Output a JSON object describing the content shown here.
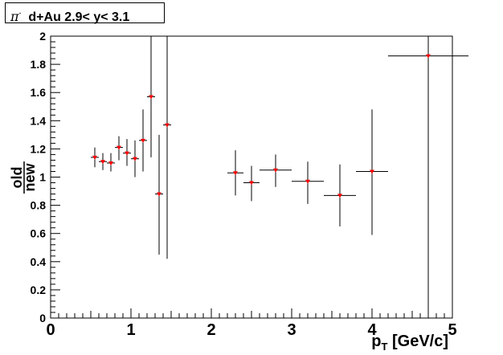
{
  "chart_data": {
    "type": "scatter",
    "title_parts": {
      "particle": "π",
      "charge": "-",
      "rest": "  d+Au 2.9< y< 3.1"
    },
    "xlabel": {
      "main": "p",
      "sub": "T",
      "unit": " [GeV/c]"
    },
    "ylabel": {
      "numerator": "old",
      "denominator": "new"
    },
    "xlim": [
      0,
      5
    ],
    "ylim": [
      0,
      2
    ],
    "x_ticks": [
      "0",
      "1",
      "2",
      "3",
      "4",
      "5"
    ],
    "y_ticks": [
      "0",
      "0.2",
      "0.4",
      "0.6",
      "0.8",
      "1",
      "1.2",
      "1.4",
      "1.6",
      "1.8",
      "2"
    ],
    "grid": false,
    "marker_color": "#ff0000",
    "points": [
      {
        "x": 0.55,
        "y": 1.14,
        "xerr": 0.05,
        "ylo": 1.07,
        "yhi": 1.21
      },
      {
        "x": 0.65,
        "y": 1.11,
        "xerr": 0.05,
        "ylo": 1.05,
        "yhi": 1.17
      },
      {
        "x": 0.75,
        "y": 1.1,
        "xerr": 0.05,
        "ylo": 1.04,
        "yhi": 1.17
      },
      {
        "x": 0.85,
        "y": 1.21,
        "xerr": 0.05,
        "ylo": 1.12,
        "yhi": 1.29
      },
      {
        "x": 0.95,
        "y": 1.17,
        "xerr": 0.05,
        "ylo": 1.08,
        "yhi": 1.27
      },
      {
        "x": 1.05,
        "y": 1.13,
        "xerr": 0.05,
        "ylo": 1.0,
        "yhi": 1.26
      },
      {
        "x": 1.15,
        "y": 1.26,
        "xerr": 0.05,
        "ylo": 1.04,
        "yhi": 1.48
      },
      {
        "x": 1.25,
        "y": 1.57,
        "xerr": 0.05,
        "ylo": 1.14,
        "yhi": 2.0
      },
      {
        "x": 1.35,
        "y": 0.88,
        "xerr": 0.05,
        "ylo": 0.45,
        "yhi": 1.3
      },
      {
        "x": 1.45,
        "y": 1.37,
        "xerr": 0.05,
        "ylo": 0.42,
        "yhi": 2.0
      },
      {
        "x": 2.3,
        "y": 1.03,
        "xerr": 0.1,
        "ylo": 0.87,
        "yhi": 1.19
      },
      {
        "x": 2.5,
        "y": 0.96,
        "xerr": 0.1,
        "ylo": 0.83,
        "yhi": 1.08
      },
      {
        "x": 2.8,
        "y": 1.05,
        "xerr": 0.2,
        "ylo": 0.93,
        "yhi": 1.16
      },
      {
        "x": 3.2,
        "y": 0.97,
        "xerr": 0.2,
        "ylo": 0.81,
        "yhi": 1.11
      },
      {
        "x": 3.6,
        "y": 0.87,
        "xerr": 0.2,
        "ylo": 0.65,
        "yhi": 1.09
      },
      {
        "x": 4.0,
        "y": 1.04,
        "xerr": 0.2,
        "ylo": 0.59,
        "yhi": 1.48
      },
      {
        "x": 4.7,
        "y": 1.86,
        "xerr": 0.5,
        "ylo": 0.0,
        "yhi": 2.0
      }
    ]
  }
}
